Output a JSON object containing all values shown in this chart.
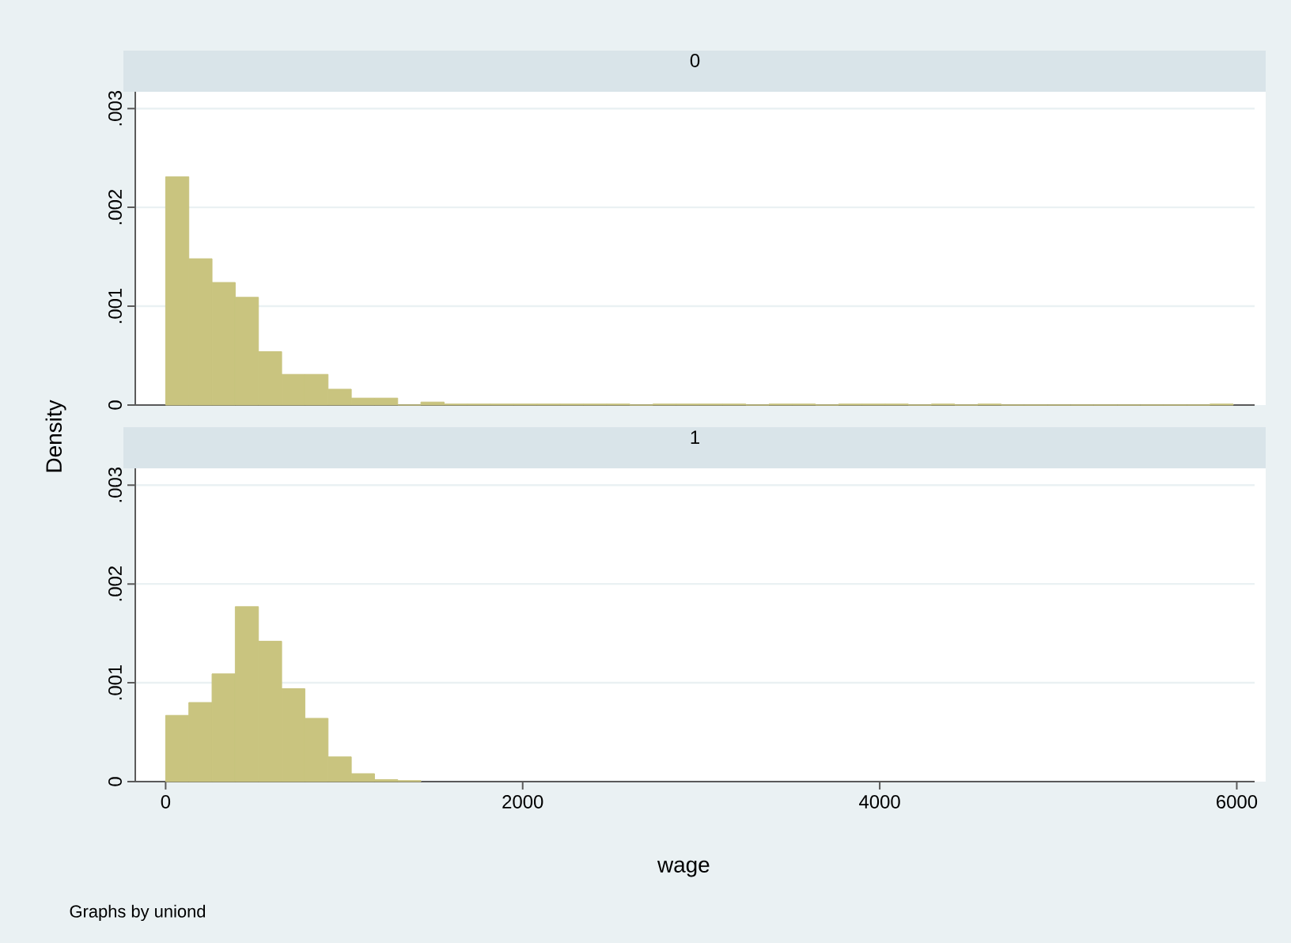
{
  "chart_data": [
    {
      "type": "histogram",
      "title": "0",
      "ylabel": "Density",
      "color": "#c9c47f",
      "bins": [
        0,
        130,
        260,
        390,
        520,
        650,
        780,
        910,
        1040,
        1170,
        1300,
        1430,
        1560,
        1690,
        1820,
        1950,
        2080,
        2210,
        2340,
        2470,
        2600,
        2730,
        2860,
        2990,
        3120,
        3250,
        3380,
        3510,
        3640,
        3770,
        3900,
        4030,
        4160,
        4290,
        4420,
        4550,
        4680,
        4810,
        4940,
        5070,
        5200,
        5330,
        5460,
        5590,
        5720,
        5850,
        5980
      ],
      "values": [
        0.00231,
        0.00148,
        0.00124,
        0.00109,
        0.00054,
        0.00031,
        0.00031,
        0.00016,
        7e-05,
        7e-05,
        0,
        3e-05,
        1e-05,
        1e-05,
        1e-05,
        1e-05,
        1e-05,
        1e-05,
        1e-05,
        1e-05,
        0,
        1e-05,
        1e-05,
        1e-05,
        1e-05,
        0,
        1e-05,
        1e-05,
        0,
        1e-05,
        1e-05,
        1e-05,
        0,
        1e-05,
        0,
        1e-05,
        0,
        0,
        0,
        0,
        0,
        0,
        0,
        0,
        0,
        1e-05
      ],
      "xlim": [
        -170,
        6100
      ],
      "ylim": [
        0,
        0.00317
      ],
      "yticks": [
        0,
        {
          "value": 0.001,
          "label": ".001"
        },
        {
          "value": 0.002,
          "label": ".002"
        },
        {
          "value": 0.003,
          "label": ".003"
        }
      ],
      "grid": "y",
      "tick_labels": "y"
    },
    {
      "type": "histogram",
      "title": "1",
      "xlabel": "wage",
      "color": "#c9c47f",
      "annotations": [
        "Graphs by uniond"
      ],
      "bins": [
        0,
        130,
        260,
        390,
        520,
        650,
        780,
        910,
        1040,
        1170,
        1300,
        1430
      ],
      "values": [
        0.00067,
        0.0008,
        0.00109,
        0.00177,
        0.00142,
        0.00094,
        0.00064,
        0.00025,
        8e-05,
        2e-05,
        1e-05
      ],
      "xlim": [
        -170,
        6100
      ],
      "ylim": [
        0,
        0.00317
      ],
      "xticks": [
        0,
        2000,
        4000,
        6000
      ],
      "yticks": [
        0,
        {
          "value": 0.001,
          "label": ".001"
        },
        {
          "value": 0.002,
          "label": ".002"
        },
        {
          "value": 0.003,
          "label": ".003"
        }
      ],
      "grid": "y"
    }
  ]
}
